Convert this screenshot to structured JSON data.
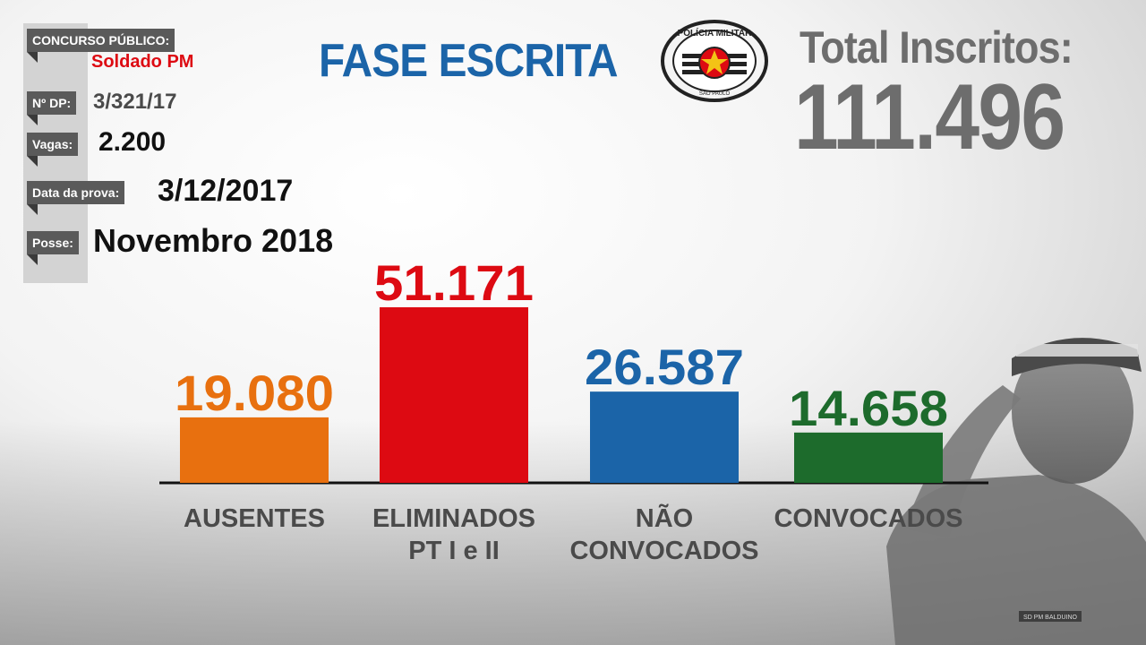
{
  "info": {
    "concurso_label": "CONCURSO PÚBLICO:",
    "concurso_value": "Soldado PM",
    "dp_label": "Nº DP:",
    "dp_value": "3/321/17",
    "vagas_label": "Vagas:",
    "vagas_value": "2.200",
    "data_label": "Data da prova:",
    "data_value": "3/12/2017",
    "posse_label": "Posse:",
    "posse_value": "Novembro 2018"
  },
  "header": {
    "title": "FASE ESCRITA",
    "badge_top_text": "POLÍCIA MILITAR",
    "badge_bottom_text": "SÃO PAULO",
    "total_label": "Total Inscritos:",
    "total_value": "111.496"
  },
  "soldier_nameplate": "SD PM BALDUINO",
  "colors": {
    "ausentes": "#e8700f",
    "eliminados": "#dd0a12",
    "nao_convocados": "#1b64a8",
    "convocados": "#1d6b2c",
    "info_label_bg": "#5a5a5a",
    "value_red": "#dd0a12",
    "total_gray": "#6d6d6d"
  },
  "chart_data": {
    "type": "bar",
    "categories": [
      [
        "AUSENTES"
      ],
      [
        "ELIMINADOS",
        "PT I e II"
      ],
      [
        "NÃO",
        "CONVOCADOS"
      ],
      [
        "CONVOCADOS"
      ]
    ],
    "values": [
      19080,
      51171,
      26587,
      14658
    ],
    "value_labels": [
      "19.080",
      "51.171",
      "26.587",
      "14.658"
    ],
    "colors": [
      "#e8700f",
      "#dd0a12",
      "#1b64a8",
      "#1d6b2c"
    ],
    "ylim": [
      0,
      51171
    ],
    "grid": false
  }
}
